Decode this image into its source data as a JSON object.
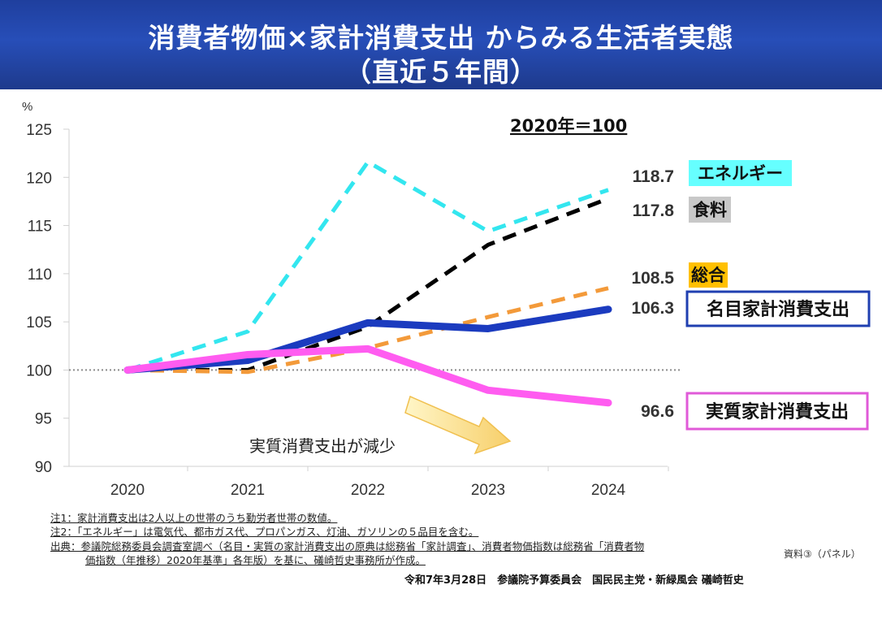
{
  "title": {
    "line1": "消費者物価×家計消費支出 からみる生活者実態",
    "line2": "（直近５年間）"
  },
  "chart_data": {
    "type": "line",
    "y_unit": "%",
    "baseline_note": "2020年＝100",
    "x": [
      "2020",
      "2021",
      "2022",
      "2023",
      "2024"
    ],
    "ylim": [
      90,
      125
    ],
    "yticks": [
      90,
      95,
      100,
      105,
      110,
      115,
      120,
      125
    ],
    "grid": false,
    "reference_line": 100,
    "series": [
      {
        "name": "エネルギー",
        "values": [
          100,
          104.0,
          121.6,
          114.4,
          118.7
        ],
        "end_label": "118.7",
        "color": "#33e6ef",
        "style": "dashed",
        "label_bg": "#66ffff",
        "label_border": ""
      },
      {
        "name": "食料",
        "values": [
          100,
          100,
          104.5,
          113.0,
          117.8
        ],
        "end_label": "117.8",
        "color": "#000000",
        "style": "dashed",
        "label_bg": "#c8c8c8",
        "label_border": ""
      },
      {
        "name": "総合",
        "values": [
          100,
          99.8,
          102.3,
          105.5,
          108.5
        ],
        "end_label": "108.5",
        "color": "#f39a3a",
        "style": "dashed",
        "label_bg": "#ffc000",
        "label_border": ""
      },
      {
        "name": "名目家計消費支出",
        "values": [
          100,
          101.0,
          104.9,
          104.3,
          106.3
        ],
        "end_label": "106.3",
        "color": "#1b3bbf",
        "style": "solid",
        "label_bg": "#ffffff",
        "label_border": "#1f3fb0"
      },
      {
        "name": "実質家計消費支出",
        "values": [
          100,
          101.6,
          102.2,
          97.9,
          96.6
        ],
        "end_label": "96.6",
        "color": "#ff5cf0",
        "style": "solid",
        "label_bg": "#ffffff",
        "label_border": "#e05ad8"
      }
    ],
    "annotation": "実質消費支出が減少"
  },
  "notes": {
    "note1": "注1：家計消費支出は2人以上の世帯のうち勤労者世帯の数値。",
    "note2": "注2：「エネルギー」は電気代、都市ガス代、プロパンガス、灯油、ガソリンの５品目を含む。",
    "source_line1": "出典：参議院総務委員会調査室調べ（名目・実質の家計消費支出の原典は総務省「家計調査」、消費者物価指数は総務省「消費者物",
    "source_line2": "価指数（年推移）2020年基準」各年版）を基に、礒崎哲史事務所が作成。"
  },
  "source_ref": "資料③（パネル）",
  "footer": "令和7年3月28日　参議院予算委員会　国民民主党・新緑風会 礒崎哲史"
}
